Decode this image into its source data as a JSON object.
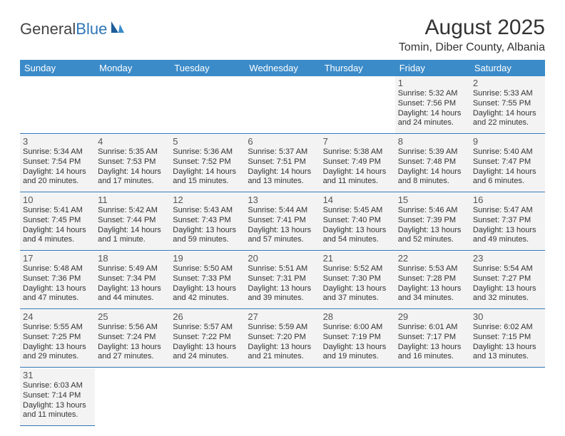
{
  "logo": {
    "text1": "General",
    "text2": "Blue"
  },
  "title": "August 2025",
  "subtitle": "Tomin, Diber County, Albania",
  "colors": {
    "header_bg": "#3b8bc9",
    "header_text": "#ffffff",
    "cell_bg": "#f3f3f3",
    "border": "#2e75b6",
    "logo_blue": "#2e75b6"
  },
  "dayNames": [
    "Sunday",
    "Monday",
    "Tuesday",
    "Wednesday",
    "Thursday",
    "Friday",
    "Saturday"
  ],
  "firstDayIndex": 5,
  "daysInMonth": 31,
  "days": {
    "1": {
      "sunrise": "5:32 AM",
      "sunset": "7:56 PM",
      "daylight": "14 hours and 24 minutes."
    },
    "2": {
      "sunrise": "5:33 AM",
      "sunset": "7:55 PM",
      "daylight": "14 hours and 22 minutes."
    },
    "3": {
      "sunrise": "5:34 AM",
      "sunset": "7:54 PM",
      "daylight": "14 hours and 20 minutes."
    },
    "4": {
      "sunrise": "5:35 AM",
      "sunset": "7:53 PM",
      "daylight": "14 hours and 17 minutes."
    },
    "5": {
      "sunrise": "5:36 AM",
      "sunset": "7:52 PM",
      "daylight": "14 hours and 15 minutes."
    },
    "6": {
      "sunrise": "5:37 AM",
      "sunset": "7:51 PM",
      "daylight": "14 hours and 13 minutes."
    },
    "7": {
      "sunrise": "5:38 AM",
      "sunset": "7:49 PM",
      "daylight": "14 hours and 11 minutes."
    },
    "8": {
      "sunrise": "5:39 AM",
      "sunset": "7:48 PM",
      "daylight": "14 hours and 8 minutes."
    },
    "9": {
      "sunrise": "5:40 AM",
      "sunset": "7:47 PM",
      "daylight": "14 hours and 6 minutes."
    },
    "10": {
      "sunrise": "5:41 AM",
      "sunset": "7:45 PM",
      "daylight": "14 hours and 4 minutes."
    },
    "11": {
      "sunrise": "5:42 AM",
      "sunset": "7:44 PM",
      "daylight": "14 hours and 1 minute."
    },
    "12": {
      "sunrise": "5:43 AM",
      "sunset": "7:43 PM",
      "daylight": "13 hours and 59 minutes."
    },
    "13": {
      "sunrise": "5:44 AM",
      "sunset": "7:41 PM",
      "daylight": "13 hours and 57 minutes."
    },
    "14": {
      "sunrise": "5:45 AM",
      "sunset": "7:40 PM",
      "daylight": "13 hours and 54 minutes."
    },
    "15": {
      "sunrise": "5:46 AM",
      "sunset": "7:39 PM",
      "daylight": "13 hours and 52 minutes."
    },
    "16": {
      "sunrise": "5:47 AM",
      "sunset": "7:37 PM",
      "daylight": "13 hours and 49 minutes."
    },
    "17": {
      "sunrise": "5:48 AM",
      "sunset": "7:36 PM",
      "daylight": "13 hours and 47 minutes."
    },
    "18": {
      "sunrise": "5:49 AM",
      "sunset": "7:34 PM",
      "daylight": "13 hours and 44 minutes."
    },
    "19": {
      "sunrise": "5:50 AM",
      "sunset": "7:33 PM",
      "daylight": "13 hours and 42 minutes."
    },
    "20": {
      "sunrise": "5:51 AM",
      "sunset": "7:31 PM",
      "daylight": "13 hours and 39 minutes."
    },
    "21": {
      "sunrise": "5:52 AM",
      "sunset": "7:30 PM",
      "daylight": "13 hours and 37 minutes."
    },
    "22": {
      "sunrise": "5:53 AM",
      "sunset": "7:28 PM",
      "daylight": "13 hours and 34 minutes."
    },
    "23": {
      "sunrise": "5:54 AM",
      "sunset": "7:27 PM",
      "daylight": "13 hours and 32 minutes."
    },
    "24": {
      "sunrise": "5:55 AM",
      "sunset": "7:25 PM",
      "daylight": "13 hours and 29 minutes."
    },
    "25": {
      "sunrise": "5:56 AM",
      "sunset": "7:24 PM",
      "daylight": "13 hours and 27 minutes."
    },
    "26": {
      "sunrise": "5:57 AM",
      "sunset": "7:22 PM",
      "daylight": "13 hours and 24 minutes."
    },
    "27": {
      "sunrise": "5:59 AM",
      "sunset": "7:20 PM",
      "daylight": "13 hours and 21 minutes."
    },
    "28": {
      "sunrise": "6:00 AM",
      "sunset": "7:19 PM",
      "daylight": "13 hours and 19 minutes."
    },
    "29": {
      "sunrise": "6:01 AM",
      "sunset": "7:17 PM",
      "daylight": "13 hours and 16 minutes."
    },
    "30": {
      "sunrise": "6:02 AM",
      "sunset": "7:15 PM",
      "daylight": "13 hours and 13 minutes."
    },
    "31": {
      "sunrise": "6:03 AM",
      "sunset": "7:14 PM",
      "daylight": "13 hours and 11 minutes."
    }
  },
  "labels": {
    "sunrise": "Sunrise: ",
    "sunset": "Sunset: ",
    "daylight": "Daylight: "
  }
}
